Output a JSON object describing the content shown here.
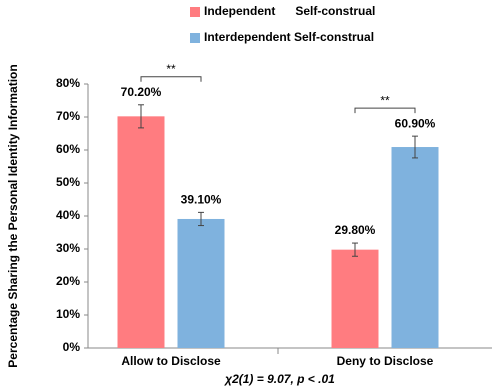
{
  "chart_data": {
    "type": "bar",
    "y_label": "Percentage Sharing the  Personal Identity Information",
    "x_note": "χ2(1) = 9.07,  p < .01",
    "categories": [
      "Allow to Disclose",
      "Deny to Disclose"
    ],
    "series": [
      {
        "name": "Independent      Self-construal",
        "color": "#ff7c80",
        "values": [
          70.2,
          29.8
        ],
        "value_labels": [
          "70.20%",
          "29.80%"
        ],
        "errors": [
          3.5,
          2
        ]
      },
      {
        "name": "Interdependent Self-construal",
        "color": "#7fb2de",
        "values": [
          39.1,
          60.9
        ],
        "value_labels": [
          "39.10%",
          "60.90%"
        ],
        "errors": [
          2,
          3.3
        ]
      }
    ],
    "annotations": [
      "**",
      "**"
    ],
    "ylim": [
      0,
      80
    ],
    "yticks": [
      {
        "value": 0,
        "label": "0%"
      },
      {
        "value": 10,
        "label": "10%"
      },
      {
        "value": 20,
        "label": "20%"
      },
      {
        "value": 30,
        "label": "30%"
      },
      {
        "value": 40,
        "label": "40%"
      },
      {
        "value": 50,
        "label": "50%"
      },
      {
        "value": 60,
        "label": "60%"
      },
      {
        "value": 70,
        "label": "70%"
      },
      {
        "value": 80,
        "label": "80%"
      }
    ],
    "grid": false
  }
}
